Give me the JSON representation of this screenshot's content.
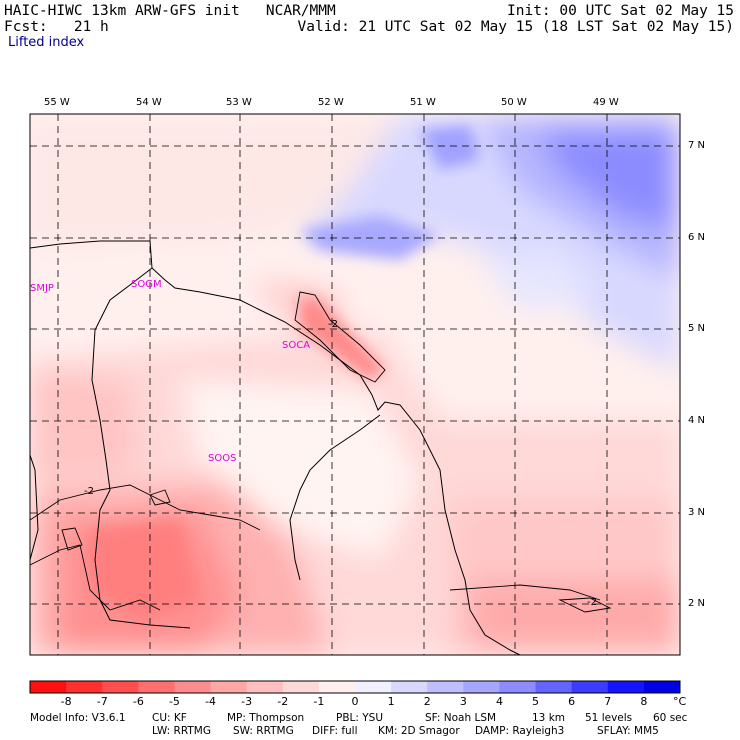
{
  "header": {
    "line1_left": "HAIC-HIWC 13km ARW-GFS init   NCAR/MMM",
    "line2_left": "Fcst:   21 h",
    "line1_right": "Init: 00 UTC Sat 02 May 15",
    "line2_right": "Valid: 21 UTC Sat 02 May 15 (18 LST Sat 02 May 15)",
    "field_name": "Lifted index"
  },
  "longitudes": [
    "55 W",
    "54 W",
    "53 W",
    "52 W",
    "51 W",
    "50 W",
    "49 W"
  ],
  "latitudes": [
    "7 N",
    "6 N",
    "5 N",
    "4 N",
    "3 N",
    "2 N"
  ],
  "stations": [
    "SMJP",
    "SOGM",
    "SOCA",
    "SOOS"
  ],
  "contour_labels": [
    "-2",
    "-2",
    "-2"
  ],
  "colorbar": {
    "ticks": [
      "-8",
      "-7",
      "-6",
      "-5",
      "-4",
      "-3",
      "-2",
      "-1",
      "0",
      "1",
      "2",
      "3",
      "4",
      "5",
      "6",
      "7",
      "8"
    ],
    "unit": "°C",
    "colors": [
      "#ff1010",
      "#ff3030",
      "#ff5050",
      "#ff6f6f",
      "#ff8c8c",
      "#ffa6a6",
      "#ffbfbf",
      "#ffd8d8",
      "#fff0ee",
      "#f2f0ff",
      "#d8d8ff",
      "#bfbfff",
      "#a6a6ff",
      "#8c8cff",
      "#6464ff",
      "#3c3cff",
      "#1414ff",
      "#0000e6"
    ]
  },
  "footer": {
    "line1": [
      {
        "key": "info",
        "text": "Model Info: V3.6.1"
      },
      {
        "key": "cu",
        "text": "CU: KF"
      },
      {
        "key": "mp",
        "text": "MP: Thompson"
      },
      {
        "key": "pbl",
        "text": "PBL: YSU"
      },
      {
        "key": "sf",
        "text": "SF: Noah LSM"
      },
      {
        "key": "res",
        "text": "13 km"
      },
      {
        "key": "lev",
        "text": "51 levels"
      },
      {
        "key": "dt",
        "text": "60 sec"
      }
    ],
    "line2": [
      {
        "key": "lw",
        "text": "LW: RRTMG"
      },
      {
        "key": "sw",
        "text": "SW: RRTMG"
      },
      {
        "key": "diff",
        "text": "DIFF: full"
      },
      {
        "key": "km",
        "text": "KM: 2D Smagor"
      },
      {
        "key": "damp",
        "text": "DAMP: Rayleigh3"
      },
      {
        "key": "sflay",
        "text": "SFLAY: MM5"
      }
    ]
  }
}
